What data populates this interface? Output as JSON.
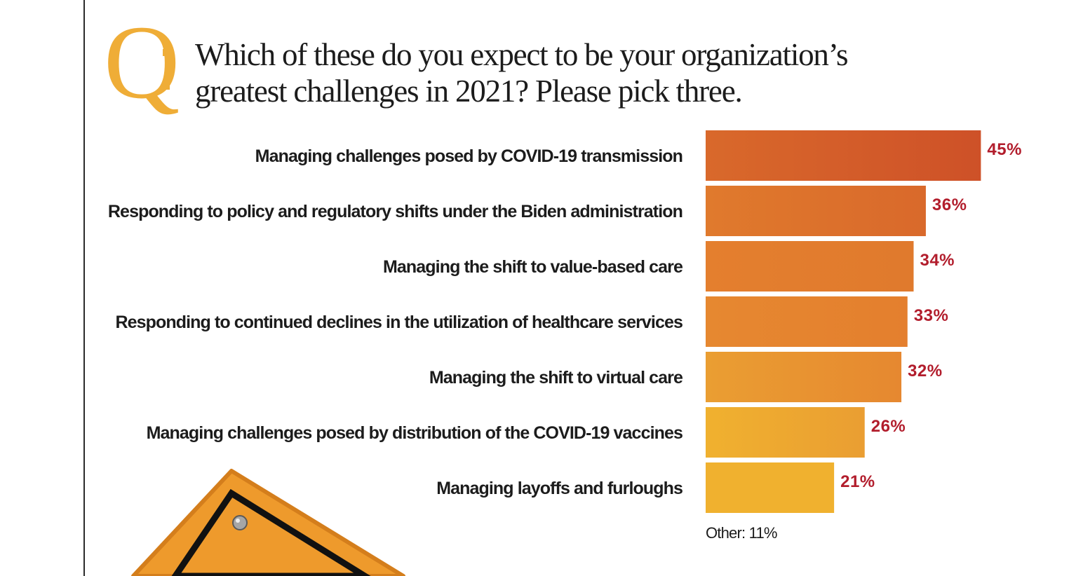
{
  "question": {
    "mark": "Q",
    "line1": "Which of these do you expect to be your organization’s",
    "line2": "greatest challenges in 2021? Please pick three."
  },
  "colors": {
    "accent": "#efad37",
    "value_text": "#b21d2c",
    "bar_gradient": [
      "#ce5128",
      "#d9692b",
      "#e07a2d",
      "#e47f2e",
      "#e68830",
      "#ea9e32",
      "#f0b12f"
    ]
  },
  "chart_data": {
    "type": "bar",
    "orientation": "horizontal",
    "categories": [
      "Managing challenges posed by COVID-19 transmission",
      "Responding to policy and regulatory shifts under the Biden administration",
      "Managing the shift to value-based care",
      "Responding to continued declines in the utilization of healthcare services",
      "Managing the shift to virtual care",
      "Managing challenges posed by distribution of the COVID-19 vaccines",
      "Managing layoffs and furloughs"
    ],
    "values": [
      45,
      36,
      34,
      33,
      32,
      26,
      21
    ],
    "value_labels": [
      "45%",
      "36%",
      "34%",
      "33%",
      "32%",
      "26%",
      "21%"
    ],
    "unit": "%",
    "xlim": [
      0,
      100
    ],
    "grid": false,
    "note": "Other: 11%"
  }
}
